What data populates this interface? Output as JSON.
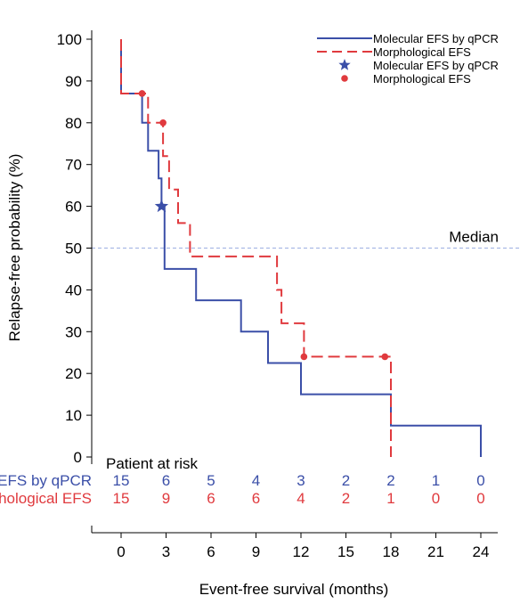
{
  "chart_data": {
    "type": "line",
    "step": true,
    "xlabel": "Event-free survival (months)",
    "ylabel": "Relapse-free probability (%)",
    "xlim": [
      0,
      24
    ],
    "ylim": [
      0,
      100
    ],
    "xticks": [
      "0",
      "3",
      "6",
      "9",
      "12",
      "15",
      "18",
      "21",
      "24"
    ],
    "yticks": [
      "0",
      "10",
      "20",
      "30",
      "40",
      "50",
      "60",
      "70",
      "80",
      "90",
      "100"
    ],
    "median_line": {
      "y": 50,
      "label": "Median",
      "color": "#a9b9e6"
    },
    "legend_position": "top-right",
    "legend": [
      {
        "label": "Molecular EFS by qPCR",
        "kind": "line-solid",
        "color": "#3b4fa8"
      },
      {
        "label": "Morphological EFS",
        "kind": "line-dashed",
        "color": "#e03a3e"
      },
      {
        "label": "Molecular EFS by qPCR",
        "kind": "star",
        "color": "#3b4fa8"
      },
      {
        "label": "Morphological EFS",
        "kind": "dot",
        "color": "#e03a3e"
      }
    ],
    "series": [
      {
        "name": "Molecular EFS by qPCR",
        "color": "#3b4fa8",
        "style": "solid",
        "steps": [
          [
            0,
            100
          ],
          [
            0,
            87
          ],
          [
            1.4,
            87
          ],
          [
            1.4,
            80
          ],
          [
            1.8,
            80
          ],
          [
            1.8,
            73.3
          ],
          [
            2.5,
            73.3
          ],
          [
            2.5,
            66.7
          ],
          [
            2.7,
            66.7
          ],
          [
            2.7,
            60
          ],
          [
            2.9,
            60
          ],
          [
            2.9,
            45
          ],
          [
            5,
            45
          ],
          [
            5,
            37.5
          ],
          [
            8,
            37.5
          ],
          [
            8,
            30
          ],
          [
            9.8,
            30
          ],
          [
            9.8,
            22.5
          ],
          [
            12,
            22.5
          ],
          [
            12,
            15
          ],
          [
            18,
            15
          ],
          [
            18,
            7.5
          ],
          [
            24,
            7.5
          ],
          [
            24,
            0
          ]
        ],
        "markers": [
          {
            "x": 2.7,
            "y": 60,
            "shape": "star"
          }
        ]
      },
      {
        "name": "Morphological EFS",
        "color": "#e03a3e",
        "style": "dashed",
        "steps": [
          [
            0,
            100
          ],
          [
            0,
            87
          ],
          [
            1.8,
            87
          ],
          [
            1.8,
            80
          ],
          [
            2.8,
            80
          ],
          [
            2.8,
            72
          ],
          [
            3.2,
            72
          ],
          [
            3.2,
            64
          ],
          [
            3.8,
            64
          ],
          [
            3.8,
            56
          ],
          [
            4.6,
            56
          ],
          [
            4.6,
            48
          ],
          [
            10.4,
            48
          ],
          [
            10.4,
            40
          ],
          [
            10.7,
            40
          ],
          [
            10.7,
            32
          ],
          [
            12.2,
            32
          ],
          [
            12.2,
            24
          ],
          [
            18,
            24
          ],
          [
            18,
            0
          ]
        ],
        "markers": [
          {
            "x": 1.4,
            "y": 87,
            "shape": "dot"
          },
          {
            "x": 2.8,
            "y": 80,
            "shape": "dot"
          },
          {
            "x": 12.2,
            "y": 24,
            "shape": "dot"
          },
          {
            "x": 17.6,
            "y": 24,
            "shape": "dot"
          }
        ]
      }
    ],
    "risk_table": {
      "title": "Patient at risk",
      "rows": [
        {
          "label": "Molecular EFS by qPCR",
          "color": "#3b4fa8",
          "values": [
            "15",
            "6",
            "5",
            "4",
            "3",
            "2",
            "2",
            "1",
            "0"
          ]
        },
        {
          "label": "Morphological EFS",
          "color": "#e03a3e",
          "values": [
            "15",
            "9",
            "6",
            "6",
            "4",
            "2",
            "1",
            "0",
            "0"
          ]
        }
      ]
    }
  }
}
